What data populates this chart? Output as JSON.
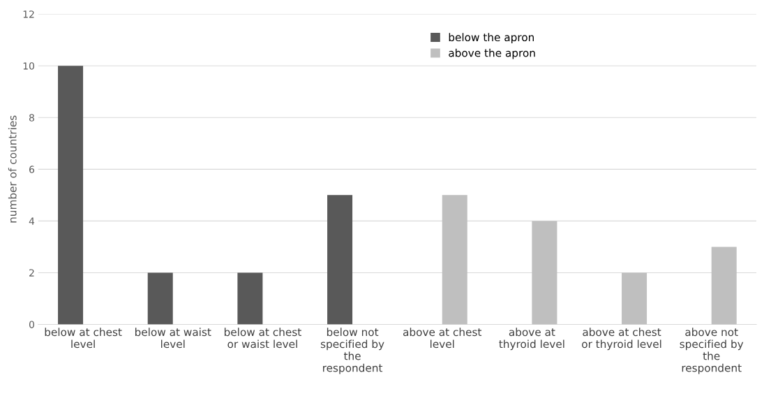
{
  "chart_data": {
    "type": "bar",
    "ylabel": "number of countries",
    "categories": [
      "below at chest\nlevel",
      "below at waist\nlevel",
      "below at chest\nor waist level",
      "below not\nspecified by\nthe\nrespondent",
      "above at chest\nlevel",
      "above at\nthyroid level",
      "above at chest\nor thyroid level",
      "above not\nspecified by\nthe\nrespondent"
    ],
    "series": [
      {
        "name": "below the apron",
        "color": "#595959",
        "values": [
          10,
          2,
          2,
          5,
          null,
          null,
          null,
          null
        ]
      },
      {
        "name": "above the apron",
        "color": "#bfbfbf",
        "values": [
          null,
          null,
          null,
          null,
          5,
          4,
          2,
          3
        ]
      }
    ],
    "ylim": [
      0,
      12
    ],
    "yticks": [
      0,
      2,
      4,
      6,
      8,
      10,
      12
    ],
    "grid": "y",
    "legend": "top"
  }
}
